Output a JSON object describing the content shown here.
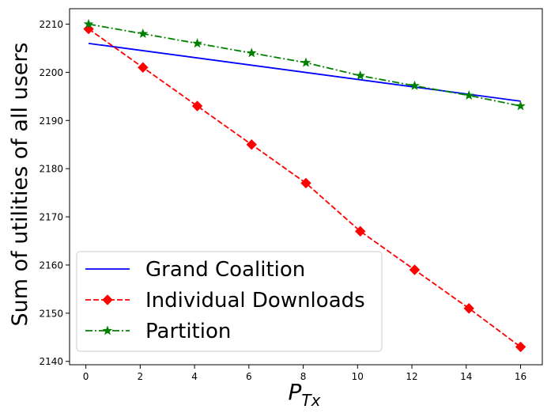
{
  "chart_data": {
    "type": "line",
    "title": "",
    "xlabel": "P",
    "xlabel_sub": "Tx",
    "ylabel": "Sum of utilities of all users",
    "xlim": [
      -0.6,
      16.8
    ],
    "ylim": [
      2139.3,
      2213.2
    ],
    "xticks": [
      0,
      2,
      4,
      6,
      8,
      10,
      12,
      14,
      16
    ],
    "yticks": [
      2140,
      2150,
      2160,
      2170,
      2180,
      2190,
      2200,
      2210
    ],
    "grid": false,
    "legend_position": "lower-left",
    "series": [
      {
        "name": "Grand Coalition",
        "color": "#0000ff",
        "style": "solid",
        "marker": "none",
        "x": [
          0.1,
          16
        ],
        "y": [
          2206,
          2194
        ]
      },
      {
        "name": "Individual Downloads",
        "color": "#ff0000",
        "style": "dashed",
        "marker": "diamond",
        "x": [
          0.1,
          2.1,
          4.1,
          6.1,
          8.1,
          10.1,
          12.1,
          14.1,
          16
        ],
        "y": [
          2209,
          2201,
          2193,
          2185,
          2177,
          2167,
          2159,
          2151,
          2143
        ]
      },
      {
        "name": "Partition",
        "color": "#008000",
        "style": "dashdot",
        "marker": "star",
        "x": [
          0.1,
          2.1,
          4.1,
          6.1,
          8.1,
          10.1,
          12.1,
          14.1,
          16
        ],
        "y": [
          2210,
          2208,
          2206,
          2204,
          2202,
          2199.3,
          2197.2,
          2195.2,
          2193
        ]
      }
    ]
  }
}
